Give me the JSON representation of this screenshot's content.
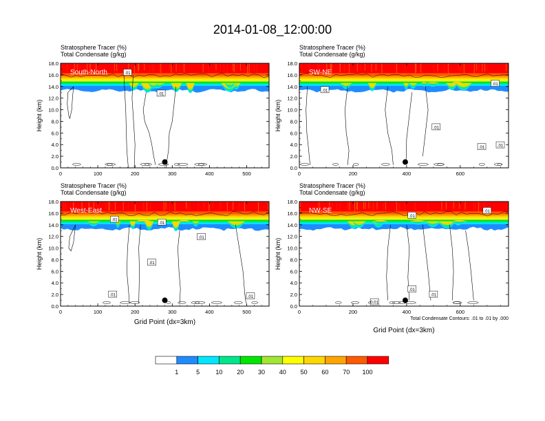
{
  "title": "2014-01-08_12:00:00",
  "colorbar": {
    "colors": [
      "#ffffff",
      "#1e8cff",
      "#00e6ff",
      "#00e68c",
      "#00e600",
      "#a0e632",
      "#ffff00",
      "#ffd700",
      "#ffa500",
      "#ff5a00",
      "#ff0000"
    ],
    "labels": [
      "1",
      "5",
      "10",
      "20",
      "30",
      "40",
      "50",
      "60",
      "70",
      "100"
    ]
  },
  "chart_data": [
    {
      "type": "heatmap",
      "panel": "South-North",
      "title_line1": "Stratosphere Tracer   (%)",
      "title_line2": "Total Condensate   (g/kg)",
      "xlabel": "",
      "ylabel": "Height (km)",
      "xlim": [
        0,
        560
      ],
      "ylim": [
        0,
        18
      ],
      "x_ticks": [
        "0",
        "100",
        "200",
        "300",
        "400",
        "500"
      ],
      "y_ticks": [
        "0.0",
        "2.0",
        "4.0",
        "6.0",
        "8.0",
        "10.0",
        "12.0",
        "14.0",
        "16.0",
        "18.0"
      ],
      "contour_labels": [
        {
          "text": ".01",
          "x": 180,
          "y": 16.4
        },
        {
          "text": ".01",
          "x": 270,
          "y": 12.8
        }
      ],
      "marker": {
        "x": 280,
        "y": 1.0
      },
      "cloud_paths": [
        [
          [
            35,
            14
          ],
          [
            20,
            13
          ],
          [
            18,
            11
          ],
          [
            22,
            9
          ],
          [
            25,
            8.5
          ],
          [
            30,
            10
          ],
          [
            32,
            12
          ],
          [
            35,
            14
          ]
        ],
        [
          [
            170,
            16
          ],
          [
            175,
            10
          ],
          [
            178,
            3
          ],
          [
            182,
            0
          ]
        ],
        [
          [
            195,
            16
          ],
          [
            192,
            12
          ],
          [
            196,
            8
          ],
          [
            200,
            4
          ],
          [
            198,
            0
          ]
        ],
        [
          [
            230,
            13
          ],
          [
            222,
            10
          ],
          [
            226,
            8
          ],
          [
            238,
            6
          ],
          [
            245,
            4
          ],
          [
            250,
            2
          ],
          [
            255,
            0.5
          ]
        ],
        [
          [
            310,
            14
          ],
          [
            305,
            11
          ],
          [
            300,
            8
          ],
          [
            292,
            6
          ],
          [
            290,
            3
          ],
          [
            285,
            1
          ],
          [
            284,
            0
          ]
        ]
      ]
    },
    {
      "type": "heatmap",
      "panel": "SW-NE",
      "title_line1": "Stratosphere Tracer   (%)",
      "title_line2": "Total Condensate   (g/kg)",
      "xlabel": "",
      "ylabel": "Height (km)",
      "xlim": [
        0,
        780
      ],
      "ylim": [
        0,
        18
      ],
      "x_ticks": [
        "0",
        "200",
        "400",
        "600"
      ],
      "y_ticks": [
        "0.0",
        "2.0",
        "4.0",
        "6.0",
        "8.0",
        "10.0",
        "12.0",
        "14.0",
        "16.0",
        "18.0"
      ],
      "contour_labels": [
        {
          "text": ".01",
          "x": 95,
          "y": 13.4
        },
        {
          "text": ".01",
          "x": 730,
          "y": 14.5
        },
        {
          "text": ".01",
          "x": 510,
          "y": 7.0
        },
        {
          "text": ".01",
          "x": 680,
          "y": 3.6
        },
        {
          "text": ".01",
          "x": 840,
          "y": 3.9
        }
      ],
      "marker": {
        "x": 395,
        "y": 1.0
      },
      "cloud_paths": [
        [
          [
            30,
            14
          ],
          [
            25,
            10
          ],
          [
            28,
            6
          ],
          [
            35,
            3
          ],
          [
            40,
            0.5
          ]
        ],
        [
          [
            180,
            14
          ],
          [
            170,
            10
          ],
          [
            175,
            6
          ],
          [
            185,
            3
          ],
          [
            180,
            0.5
          ]
        ],
        [
          [
            330,
            14
          ],
          [
            320,
            10
          ],
          [
            330,
            6
          ],
          [
            345,
            3
          ],
          [
            350,
            0.5
          ]
        ],
        [
          [
            420,
            13
          ],
          [
            410,
            9
          ],
          [
            400,
            5
          ],
          [
            398,
            1
          ]
        ],
        [
          [
            470,
            14
          ],
          [
            480,
            10
          ],
          [
            470,
            6
          ],
          [
            460,
            2
          ]
        ]
      ]
    },
    {
      "type": "heatmap",
      "panel": "West-East",
      "title_line1": "Stratosphere Tracer   (%)",
      "title_line2": "Total Condensate   (g/kg)",
      "xlabel": "Grid Point (dx=3km)",
      "ylabel": "Height (km)",
      "xlim": [
        0,
        560
      ],
      "ylim": [
        0,
        18
      ],
      "x_ticks": [
        "0",
        "100",
        "200",
        "300",
        "400",
        "500"
      ],
      "y_ticks": [
        "0.0",
        "2.0",
        "4.0",
        "6.0",
        "8.0",
        "10.0",
        "12.0",
        "14.0",
        "16.0",
        "18.0"
      ],
      "contour_labels": [
        {
          "text": ".01",
          "x": 145,
          "y": 14.9
        },
        {
          "text": ".01",
          "x": 272,
          "y": 14.4
        },
        {
          "text": ".01",
          "x": 378,
          "y": 11.9
        },
        {
          "text": ".01",
          "x": 245,
          "y": 7.5
        },
        {
          "text": ".01",
          "x": 140,
          "y": 2.0
        },
        {
          "text": ".01",
          "x": 510,
          "y": 1.7
        }
      ],
      "marker": {
        "x": 280,
        "y": 1.0
      },
      "cloud_paths": [
        [
          [
            40,
            14
          ],
          [
            25,
            12
          ],
          [
            22,
            10
          ],
          [
            28,
            9.5
          ],
          [
            35,
            11
          ],
          [
            40,
            14
          ]
        ],
        [
          [
            185,
            14
          ],
          [
            180,
            10
          ],
          [
            178,
            6
          ],
          [
            182,
            3
          ],
          [
            185,
            0.5
          ]
        ],
        [
          [
            215,
            14
          ],
          [
            210,
            10
          ],
          [
            212,
            6
          ],
          [
            210,
            0.5
          ]
        ],
        [
          [
            320,
            13
          ],
          [
            315,
            10
          ],
          [
            318,
            6
          ],
          [
            322,
            3
          ],
          [
            320,
            0.5
          ]
        ],
        [
          [
            470,
            14
          ],
          [
            480,
            10
          ],
          [
            490,
            6
          ],
          [
            495,
            2
          ],
          [
            498,
            0.5
          ]
        ]
      ]
    },
    {
      "type": "heatmap",
      "panel": "NW-SE",
      "title_line1": "Stratosphere Tracer   (%)",
      "title_line2": "Total Condensate   (g/kg)",
      "xlabel": "Grid Point (dx=3km)",
      "ylabel": "Height (km)",
      "xlim": [
        0,
        780
      ],
      "ylim": [
        0,
        18
      ],
      "x_ticks": [
        "0",
        "200",
        "400",
        "600"
      ],
      "y_ticks": [
        "0.0",
        "2.0",
        "4.0",
        "6.0",
        "8.0",
        "10.0",
        "12.0",
        "14.0",
        "16.0",
        "18.0"
      ],
      "contour_labels": [
        {
          "text": ".01",
          "x": 420,
          "y": 15.6
        },
        {
          "text": ".01",
          "x": 700,
          "y": 16.4
        },
        {
          "text": ".01",
          "x": 420,
          "y": 2.9
        },
        {
          "text": ".01",
          "x": 500,
          "y": 2.0
        },
        {
          "text": "0.01",
          "x": 280,
          "y": 0.7
        }
      ],
      "marker": {
        "x": 395,
        "y": 1.0
      },
      "footnote": "Total Condensate Contours: .01 to .01 by .000",
      "cloud_paths": [
        [
          [
            340,
            14
          ],
          [
            330,
            10
          ],
          [
            325,
            5
          ],
          [
            330,
            1
          ]
        ],
        [
          [
            400,
            14
          ],
          [
            410,
            10
          ],
          [
            405,
            5
          ],
          [
            410,
            1
          ]
        ],
        [
          [
            460,
            14
          ],
          [
            470,
            10
          ],
          [
            480,
            6
          ],
          [
            490,
            1
          ]
        ],
        [
          [
            560,
            14
          ],
          [
            570,
            10
          ],
          [
            575,
            6
          ],
          [
            570,
            1
          ]
        ],
        [
          [
            620,
            13
          ],
          [
            630,
            10
          ],
          [
            640,
            6
          ],
          [
            650,
            1
          ]
        ]
      ]
    }
  ]
}
